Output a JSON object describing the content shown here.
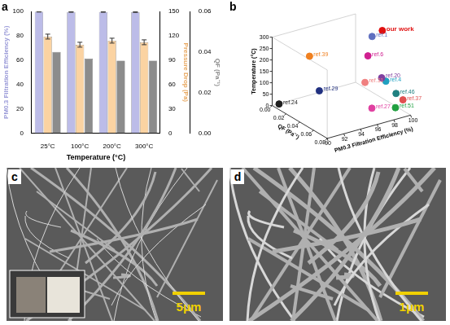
{
  "chart_data": [
    {
      "type": "bar",
      "panel": "a",
      "x_label": "Temperature (°C)",
      "categories": [
        "25°C",
        "100°C",
        "200°C",
        "300°C"
      ],
      "series": [
        {
          "color": "#bcbce8",
          "axis": "y",
          "values": [
            99.7,
            99.5,
            99.5,
            99.4
          ],
          "errors": [
            0.2,
            0.2,
            0.2,
            0.2
          ]
        },
        {
          "color": "#fbd3a2",
          "axis": "y2",
          "values": [
            119,
            109,
            114,
            112
          ],
          "errors": [
            3,
            3,
            3,
            3
          ]
        },
        {
          "color": "#8c8c8c",
          "axis": "y3",
          "values": [
            0.04,
            0.0367,
            0.0357,
            0.0357
          ]
        }
      ],
      "y_label": "PM0.3 Filtration Efficiency (%)",
      "ylim": [
        0,
        100
      ],
      "yticks": [
        0,
        20,
        40,
        60,
        80,
        100
      ],
      "y2_label": "Pressure Drop (Pa)",
      "y2lim": [
        0,
        150
      ],
      "y2ticks": [
        0,
        30,
        60,
        90,
        120,
        150
      ],
      "y3_label": "QF (Pa⁻¹)",
      "y3lim": [
        0,
        0.06
      ],
      "y3ticks": [
        {
          "value": 0,
          "label": "0.00"
        },
        {
          "value": 0.02,
          "label": "0.02"
        },
        {
          "value": 0.04,
          "label": "0.04"
        },
        {
          "value": 0.06,
          "label": "0.06"
        }
      ],
      "grid": false
    },
    {
      "type": "scatter3d",
      "panel": "b",
      "x_label": "PM0.3 Filtration Efficiency (%)",
      "y_label": "QF (Pa⁻¹)",
      "z_label": "Temperature (°C)",
      "xlim": [
        90,
        100
      ],
      "xticks": [
        90,
        92,
        94,
        96,
        98,
        100
      ],
      "ylim": [
        0,
        0.08
      ],
      "yticks": [
        {
          "value": 0,
          "label": "0.00"
        },
        {
          "value": 0.02,
          "label": "0.02"
        },
        {
          "value": 0.04,
          "label": "0.04"
        },
        {
          "value": 0.06,
          "label": "0.06"
        },
        {
          "value": 0.08,
          "label": "0.08"
        }
      ],
      "zlim": [
        0,
        300
      ],
      "zticks": [
        0,
        50,
        100,
        150,
        200,
        250,
        300
      ],
      "series": [
        {
          "name": "our work",
          "color": "#e01010",
          "x": 99.9,
          "y": 0.04,
          "z": 300
        },
        {
          "name": "ref.39",
          "color": "#f08020",
          "x": 92,
          "y": 0.03,
          "z": 250
        },
        {
          "name": "ref.1",
          "color": "#6070c0",
          "x": 99.5,
          "y": 0.03,
          "z": 260
        },
        {
          "name": "ref.6",
          "color": "#d02090",
          "x": 99,
          "y": 0.03,
          "z": 180
        },
        {
          "name": "ref.31",
          "color": "#f08080",
          "x": 97,
          "y": 0.05,
          "z": 120
        },
        {
          "name": "ref.20",
          "color": "#8040a0",
          "x": 99,
          "y": 0.05,
          "z": 120
        },
        {
          "name": "ref.4",
          "color": "#20a0c0",
          "x": 99.5,
          "y": 0.05,
          "z": 100
        },
        {
          "name": "ref.46",
          "color": "#208080",
          "x": 99.9,
          "y": 0.06,
          "z": 60
        },
        {
          "name": "ref.37",
          "color": "#e05050",
          "x": 99.9,
          "y": 0.07,
          "z": 50
        },
        {
          "name": "ref.29",
          "color": "#203080",
          "x": 94,
          "y": 0.02,
          "z": 60
        },
        {
          "name": "ref.24",
          "color": "#202020",
          "x": 90,
          "y": 0.01,
          "z": 25
        },
        {
          "name": "ref.27",
          "color": "#e040a0",
          "x": 97,
          "y": 0.06,
          "z": 25
        },
        {
          "name": "ref.51",
          "color": "#20a040",
          "x": 99,
          "y": 0.07,
          "z": 25
        }
      ]
    }
  ],
  "images": [
    {
      "panel": "c",
      "scale_bar": "5μm"
    },
    {
      "panel": "d",
      "scale_bar": "1μm"
    }
  ]
}
